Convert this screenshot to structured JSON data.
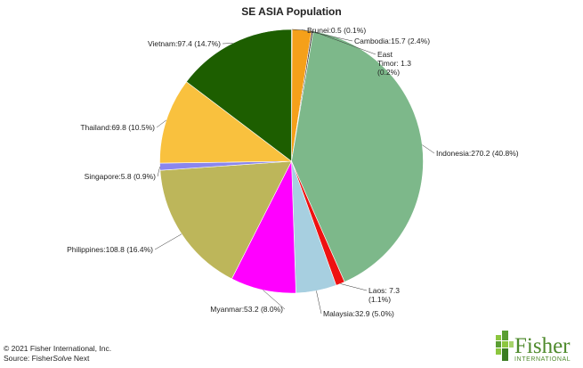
{
  "chart_data": {
    "type": "pie",
    "title": "SE ASIA Population",
    "slices": [
      {
        "label": "Brunei:0.5 (0.1%)",
        "name": "Brunei",
        "value": 0.5,
        "percent": 0.1,
        "color": "#3a3a9a"
      },
      {
        "label": "Cambodia:15.7 (2.4%)",
        "name": "Cambodia",
        "value": 15.7,
        "percent": 2.4,
        "color": "#f5a01a"
      },
      {
        "label": "East Timor: 1.3 (0.2%)",
        "name": "East Timor",
        "value": 1.3,
        "percent": 0.2,
        "color": "#3d2f2a"
      },
      {
        "label": "Indonesia:270.2 (40.8%)",
        "name": "Indonesia",
        "value": 270.2,
        "percent": 40.8,
        "color": "#7db88a"
      },
      {
        "label": "Laos: 7.3 (1.1%)",
        "name": "Laos",
        "value": 7.3,
        "percent": 1.1,
        "color": "#ee1111"
      },
      {
        "label": "Malaysia:32.9 (5.0%)",
        "name": "Malaysia",
        "value": 32.9,
        "percent": 5.0,
        "color": "#a7cfe0"
      },
      {
        "label": "Myanmar:53.2 (8.0%)",
        "name": "Myanmar",
        "value": 53.2,
        "percent": 8.0,
        "color": "#ff00ff"
      },
      {
        "label": "Philippines:108.8 (16.4%)",
        "name": "Philippines",
        "value": 108.8,
        "percent": 16.4,
        "color": "#bdb65a"
      },
      {
        "label": "Singapore:5.8 (0.9%)",
        "name": "Singapore",
        "value": 5.8,
        "percent": 0.9,
        "color": "#8a86ee"
      },
      {
        "label": "Thailand:69.8 (10.5%)",
        "name": "Thailand",
        "value": 69.8,
        "percent": 10.5,
        "color": "#f9c13e"
      },
      {
        "label": "Vietnam:97.4 (14.7%)",
        "name": "Vietnam",
        "value": 97.4,
        "percent": 14.7,
        "color": "#1d5e00"
      }
    ]
  },
  "footer": {
    "copyright": "© 2021 Fisher International, Inc.",
    "source_prefix": "Source: Fisher",
    "source_italic": "Solve",
    "source_suffix": " Next"
  },
  "logo": {
    "name": "Fisher",
    "tagline": "INTERNATIONAL"
  }
}
